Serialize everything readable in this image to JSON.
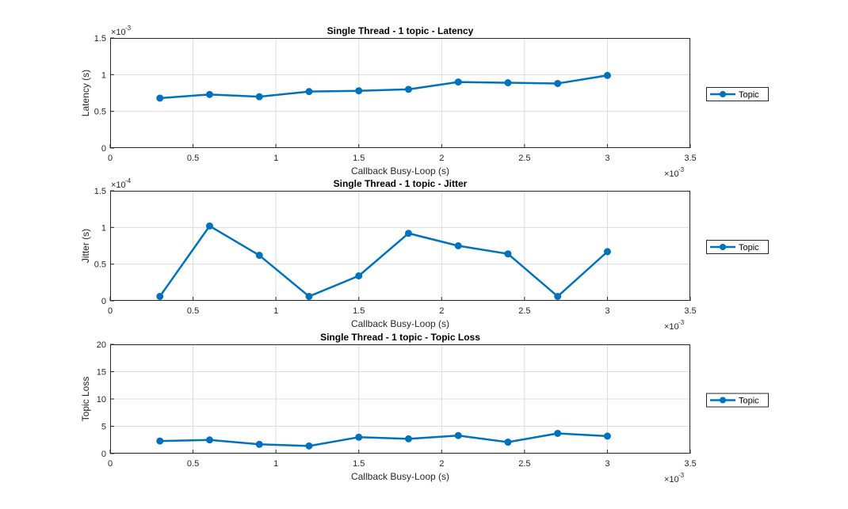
{
  "figure": {
    "background": "#ffffff",
    "line_color": "#0072BD",
    "grid_color": "#dcdcdc",
    "axis_color": "#262626"
  },
  "chart_data": [
    {
      "type": "line",
      "title": "Single Thread - 1 topic - Latency",
      "xlabel": "Callback Busy-Loop (s)",
      "ylabel": "Latency (s)",
      "x_exponent": "×10",
      "x_exponent_power": "-3",
      "y_exponent": "×10",
      "y_exponent_power": "-3",
      "xlim": [
        0,
        3.5
      ],
      "ylim": [
        0,
        1.5
      ],
      "xticks": [
        0,
        0.5,
        1,
        1.5,
        2,
        2.5,
        3,
        3.5
      ],
      "xtick_labels": [
        "0",
        "0.5",
        "1",
        "1.5",
        "2",
        "2.5",
        "3",
        "3.5"
      ],
      "yticks": [
        0,
        0.5,
        1,
        1.5
      ],
      "ytick_labels": [
        "0",
        "0.5",
        "1",
        "1.5"
      ],
      "grid": true,
      "legend_position": "right",
      "series": [
        {
          "name": "Topic",
          "x": [
            0.3,
            0.6,
            0.9,
            1.2,
            1.5,
            1.8,
            2.1,
            2.4,
            2.7,
            3.0
          ],
          "values": [
            0.68,
            0.73,
            0.7,
            0.77,
            0.78,
            0.8,
            0.9,
            0.89,
            0.88,
            0.99
          ]
        }
      ]
    },
    {
      "type": "line",
      "title": "Single Thread - 1 topic - Jitter",
      "xlabel": "Callback Busy-Loop (s)",
      "ylabel": "Jitter (s)",
      "x_exponent": "×10",
      "x_exponent_power": "-3",
      "y_exponent": "×10",
      "y_exponent_power": "-4",
      "xlim": [
        0,
        3.5
      ],
      "ylim": [
        0,
        1.5
      ],
      "xticks": [
        0,
        0.5,
        1,
        1.5,
        2,
        2.5,
        3,
        3.5
      ],
      "xtick_labels": [
        "0",
        "0.5",
        "1",
        "1.5",
        "2",
        "2.5",
        "3",
        "3.5"
      ],
      "yticks": [
        0,
        0.5,
        1,
        1.5
      ],
      "ytick_labels": [
        "0",
        "0.5",
        "1",
        "1.5"
      ],
      "grid": true,
      "legend_position": "right",
      "series": [
        {
          "name": "Topic",
          "x": [
            0.3,
            0.6,
            0.9,
            1.2,
            1.5,
            1.8,
            2.1,
            2.4,
            2.7,
            3.0
          ],
          "values": [
            0.06,
            1.02,
            0.62,
            0.06,
            0.34,
            0.92,
            0.75,
            0.64,
            0.06,
            0.67
          ]
        }
      ]
    },
    {
      "type": "line",
      "title": "Single Thread - 1 topic - Topic Loss",
      "xlabel": "Callback Busy-Loop (s)",
      "ylabel": "Topic Loss",
      "x_exponent": "×10",
      "x_exponent_power": "-3",
      "y_exponent": "",
      "y_exponent_power": "",
      "xlim": [
        0,
        3.5
      ],
      "ylim": [
        0,
        20
      ],
      "xticks": [
        0,
        0.5,
        1,
        1.5,
        2,
        2.5,
        3,
        3.5
      ],
      "xtick_labels": [
        "0",
        "0.5",
        "1",
        "1.5",
        "2",
        "2.5",
        "3",
        "3.5"
      ],
      "yticks": [
        0,
        5,
        10,
        15,
        20
      ],
      "ytick_labels": [
        "0",
        "5",
        "10",
        "15",
        "20"
      ],
      "grid": true,
      "legend_position": "right",
      "series": [
        {
          "name": "Topic",
          "x": [
            0.3,
            0.6,
            0.9,
            1.2,
            1.5,
            1.8,
            2.1,
            2.4,
            2.7,
            3.0
          ],
          "values": [
            2.3,
            2.5,
            1.7,
            1.4,
            3.0,
            2.7,
            3.3,
            2.1,
            3.7,
            3.2
          ]
        }
      ]
    }
  ]
}
